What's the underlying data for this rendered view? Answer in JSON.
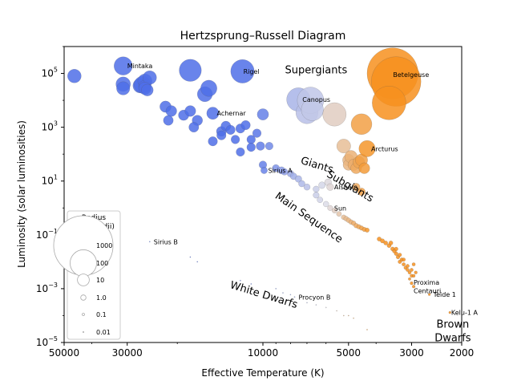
{
  "chart_data": {
    "type": "scatter",
    "title": "Hertzsprung–Russell Diagram",
    "xlabel": "Effective Temperature (K)",
    "ylabel": "Luminosity (solar luminosities)",
    "x_scale": "log",
    "y_scale": "log",
    "x_reversed": true,
    "xlim": [
      50000,
      2000
    ],
    "ylim": [
      1e-05,
      1000000
    ],
    "x_ticks": [
      {
        "value": 50000,
        "label": "50000"
      },
      {
        "value": 30000,
        "label": "30000"
      },
      {
        "value": 10000,
        "label": "10000"
      },
      {
        "value": 5000,
        "label": "5000"
      },
      {
        "value": 3000,
        "label": "3000"
      },
      {
        "value": 2000,
        "label": "2000"
      }
    ],
    "y_ticks": [
      {
        "value": 1e-05,
        "base": "10",
        "exp": "−5"
      },
      {
        "value": 0.001,
        "base": "10",
        "exp": "−3"
      },
      {
        "value": 0.1,
        "base": "10",
        "exp": "−1"
      },
      {
        "value": 10,
        "base": "10",
        "exp": "1"
      },
      {
        "value": 1000,
        "base": "10",
        "exp": "3"
      },
      {
        "value": 100000,
        "base": "10",
        "exp": "5"
      }
    ],
    "grid": false,
    "color_hot": "#4f6fe8",
    "color_mid": "#dcdce8",
    "color_cool": "#f7911e",
    "legend": {
      "title_line1": "Radius",
      "title_line2": "(solar radii)",
      "placement": "lower-left",
      "entries": [
        {
          "label": "1000",
          "radius": 1000
        },
        {
          "label": "100",
          "radius": 100
        },
        {
          "label": "10",
          "radius": 10
        },
        {
          "label": "1.0",
          "radius": 1
        },
        {
          "label": "0.1",
          "radius": 0.1
        },
        {
          "label": "0.01",
          "radius": 0.01
        }
      ]
    },
    "region_labels": [
      {
        "text": "Supergiants",
        "t": 6500,
        "l": 100000,
        "rotate": 0
      },
      {
        "text": "Giants",
        "t": 6500,
        "l": 30,
        "rotate": 17
      },
      {
        "text": "Subgiants",
        "t": 5000,
        "l": 5,
        "rotate": 30
      },
      {
        "text": "Main Sequence",
        "t": 7000,
        "l": 0.35,
        "rotate": 35
      },
      {
        "text": "White Dwarfs",
        "t": 10000,
        "l": 0.00045,
        "rotate": 17
      },
      {
        "text": "Brown",
        "t": 2150,
        "l": 3.5e-05,
        "rotate": 0
      },
      {
        "text": "Dwarfs",
        "t": 2150,
        "l": 1.1e-05,
        "rotate": 0
      }
    ],
    "star_labels": [
      {
        "text": "Mintaka",
        "t": 31000,
        "l": 190000
      },
      {
        "text": "Rigel",
        "t": 12100,
        "l": 120000
      },
      {
        "text": "Betelgeuse",
        "t": 3600,
        "l": 90000
      },
      {
        "text": "Canopus",
        "t": 7500,
        "l": 10700
      },
      {
        "text": "Achernar",
        "t": 15000,
        "l": 3300
      },
      {
        "text": "Arcturus",
        "t": 4300,
        "l": 160
      },
      {
        "text": "Sirius A",
        "t": 9900,
        "l": 25
      },
      {
        "text": "Alshain",
        "t": 5800,
        "l": 6
      },
      {
        "text": "Sun",
        "t": 5800,
        "l": 1
      },
      {
        "text": "Sirius B",
        "t": 25000,
        "l": 0.056
      },
      {
        "text": "Proxima",
        "t": 3050,
        "l": 0.0017
      },
      {
        "text": "Centauri",
        "t": 3050,
        "l": 0.00085
      },
      {
        "text": "Procyon B",
        "t": 7740,
        "l": 0.00049
      },
      {
        "text": "Teide 1",
        "t": 2600,
        "l": 0.00061
      },
      {
        "text": "Kelu-1 A",
        "t": 2250,
        "l": 0.00013
      }
    ],
    "stars": [
      {
        "t": 46000,
        "l": 80000,
        "r": 15
      },
      {
        "t": 31000,
        "l": 190000,
        "r": 35
      },
      {
        "t": 31000,
        "l": 40000,
        "r": 18
      },
      {
        "t": 31000,
        "l": 28000,
        "r": 14
      },
      {
        "t": 27000,
        "l": 35000,
        "r": 18
      },
      {
        "t": 26500,
        "l": 38000,
        "r": 28
      },
      {
        "t": 26000,
        "l": 52000,
        "r": 17
      },
      {
        "t": 26000,
        "l": 33000,
        "r": 12
      },
      {
        "t": 25000,
        "l": 70000,
        "r": 15
      },
      {
        "t": 26000,
        "l": 28000,
        "r": 12
      },
      {
        "t": 25500,
        "l": 24000,
        "r": 10
      },
      {
        "t": 22000,
        "l": 5800,
        "r": 9
      },
      {
        "t": 21000,
        "l": 4000,
        "r": 8
      },
      {
        "t": 19000,
        "l": 2800,
        "r": 7
      },
      {
        "t": 18000,
        "l": 130000,
        "r": 60
      },
      {
        "t": 18000,
        "l": 4000,
        "r": 8
      },
      {
        "t": 17000,
        "l": 1800,
        "r": 7
      },
      {
        "t": 16000,
        "l": 17000,
        "r": 20
      },
      {
        "t": 15500,
        "l": 28000,
        "r": 25
      },
      {
        "t": 17500,
        "l": 1000,
        "r": 6
      },
      {
        "t": 21500,
        "l": 1800,
        "r": 6
      },
      {
        "t": 15000,
        "l": 3300,
        "r": 11
      },
      {
        "t": 15000,
        "l": 300,
        "r": 5
      },
      {
        "t": 14000,
        "l": 700,
        "r": 6
      },
      {
        "t": 14000,
        "l": 500,
        "r": 5
      },
      {
        "t": 13500,
        "l": 1100,
        "r": 6
      },
      {
        "t": 13000,
        "l": 800,
        "r": 5
      },
      {
        "t": 12500,
        "l": 350,
        "r": 4
      },
      {
        "t": 12000,
        "l": 900,
        "r": 5
      },
      {
        "t": 11500,
        "l": 1200,
        "r": 5
      },
      {
        "t": 11800,
        "l": 120000,
        "r": 71
      },
      {
        "t": 12000,
        "l": 120,
        "r": 4
      },
      {
        "t": 11000,
        "l": 350,
        "r": 4
      },
      {
        "t": 11000,
        "l": 180,
        "r": 4
      },
      {
        "t": 10500,
        "l": 600,
        "r": 4
      },
      {
        "t": 10200,
        "l": 200,
        "r": 4
      },
      {
        "t": 10000,
        "l": 3000,
        "r": 9
      },
      {
        "t": 10000,
        "l": 40,
        "r": 3
      },
      {
        "t": 9900,
        "l": 25,
        "r": 2
      },
      {
        "t": 9500,
        "l": 200,
        "r": 3
      },
      {
        "t": 9000,
        "l": 30,
        "r": 2.5
      },
      {
        "t": 8600,
        "l": 25,
        "r": 2.5
      },
      {
        "t": 8400,
        "l": 22,
        "r": 2
      },
      {
        "t": 8000,
        "l": 19,
        "r": 2
      },
      {
        "t": 7800,
        "l": 15,
        "r": 2
      },
      {
        "t": 7500,
        "l": 10700,
        "r": 71
      },
      {
        "t": 7500,
        "l": 12,
        "r": 2
      },
      {
        "t": 7300,
        "l": 8,
        "r": 1.8
      },
      {
        "t": 7000,
        "l": 6,
        "r": 1.7
      },
      {
        "t": 7000,
        "l": 3500,
        "r": 60
      },
      {
        "t": 6800,
        "l": 10000,
        "r": 100
      },
      {
        "t": 6700,
        "l": 4500,
        "r": 60
      },
      {
        "t": 6500,
        "l": 3,
        "r": 1.5
      },
      {
        "t": 6500,
        "l": 5,
        "r": 1.6
      },
      {
        "t": 6300,
        "l": 2,
        "r": 1.3
      },
      {
        "t": 6200,
        "l": 7,
        "r": 2
      },
      {
        "t": 6000,
        "l": 1.4,
        "r": 1.2
      },
      {
        "t": 5900,
        "l": 9,
        "r": 2.2
      },
      {
        "t": 5800,
        "l": 1,
        "r": 1
      },
      {
        "t": 5800,
        "l": 6,
        "r": 2.2
      },
      {
        "t": 5600,
        "l": 3000,
        "r": 70
      },
      {
        "t": 5600,
        "l": 0.8,
        "r": 0.9
      },
      {
        "t": 5400,
        "l": 0.6,
        "r": 0.85
      },
      {
        "t": 5200,
        "l": 0.45,
        "r": 0.8
      },
      {
        "t": 5100,
        "l": 0.4,
        "r": 0.78
      },
      {
        "t": 5000,
        "l": 0.35,
        "r": 0.75
      },
      {
        "t": 4900,
        "l": 0.3,
        "r": 0.72
      },
      {
        "t": 4800,
        "l": 0.27,
        "r": 0.7
      },
      {
        "t": 4700,
        "l": 0.22,
        "r": 0.68
      },
      {
        "t": 4600,
        "l": 0.2,
        "r": 0.65
      },
      {
        "t": 4500,
        "l": 0.18,
        "r": 0.62
      },
      {
        "t": 4400,
        "l": 0.16,
        "r": 0.6
      },
      {
        "t": 4300,
        "l": 0.15,
        "r": 0.58
      },
      {
        "t": 5200,
        "l": 200,
        "r": 16
      },
      {
        "t": 5000,
        "l": 60,
        "r": 10
      },
      {
        "t": 5000,
        "l": 40,
        "r": 8
      },
      {
        "t": 4900,
        "l": 80,
        "r": 12
      },
      {
        "t": 4800,
        "l": 40,
        "r": 9
      },
      {
        "t": 4700,
        "l": 30,
        "r": 8
      },
      {
        "t": 4600,
        "l": 50,
        "r": 10
      },
      {
        "t": 4500,
        "l": 60,
        "r": 11
      },
      {
        "t": 4400,
        "l": 30,
        "r": 8
      },
      {
        "t": 4500,
        "l": 1300,
        "r": 50
      },
      {
        "t": 4300,
        "l": 160,
        "r": 25
      },
      {
        "t": 4700,
        "l": 6,
        "r": 3
      },
      {
        "t": 4500,
        "l": 4,
        "r": 2.8
      },
      {
        "t": 3900,
        "l": 0.07,
        "r": 0.55
      },
      {
        "t": 3800,
        "l": 0.06,
        "r": 0.55
      },
      {
        "t": 3700,
        "l": 0.05,
        "r": 0.5
      },
      {
        "t": 3600,
        "l": 0.04,
        "r": 0.5
      },
      {
        "t": 3550,
        "l": 0.05,
        "r": 0.5
      },
      {
        "t": 3500,
        "l": 0.03,
        "r": 0.45
      },
      {
        "t": 3450,
        "l": 0.025,
        "r": 0.45
      },
      {
        "t": 3400,
        "l": 0.02,
        "r": 0.4
      },
      {
        "t": 3350,
        "l": 0.015,
        "r": 0.38
      },
      {
        "t": 3300,
        "l": 0.01,
        "r": 0.35
      },
      {
        "t": 3250,
        "l": 0.012,
        "r": 0.35
      },
      {
        "t": 3200,
        "l": 0.008,
        "r": 0.32
      },
      {
        "t": 3150,
        "l": 0.006,
        "r": 0.3
      },
      {
        "t": 3100,
        "l": 0.005,
        "r": 0.3
      },
      {
        "t": 3050,
        "l": 0.004,
        "r": 0.28
      },
      {
        "t": 3000,
        "l": 0.003,
        "r": 0.25
      },
      {
        "t": 3000,
        "l": 0.0016,
        "r": 0.22
      },
      {
        "t": 3050,
        "l": 0.0023,
        "r": 0.15
      },
      {
        "t": 2950,
        "l": 0.0012,
        "r": 0.2
      },
      {
        "t": 3100,
        "l": 0.007,
        "r": 0.3
      },
      {
        "t": 3200,
        "l": 0.012,
        "r": 0.32
      },
      {
        "t": 3300,
        "l": 0.018,
        "r": 0.35
      },
      {
        "t": 3400,
        "l": 0.03,
        "r": 0.4
      },
      {
        "t": 3000,
        "l": 0.005,
        "r": 0.28
      },
      {
        "t": 2950,
        "l": 0.008,
        "r": 0.26
      },
      {
        "t": 2900,
        "l": 0.004,
        "r": 0.22
      },
      {
        "t": 2950,
        "l": 0.003,
        "r": 0.22
      },
      {
        "t": 3500,
        "l": 100000,
        "r": 650
      },
      {
        "t": 3400,
        "l": 50000,
        "r": 600
      },
      {
        "t": 3600,
        "l": 8000,
        "r": 200
      },
      {
        "t": 2600,
        "l": 0.00061,
        "r": 0.1
      },
      {
        "t": 2200,
        "l": 0.00013,
        "r": 0.09
      },
      {
        "t": 25000,
        "l": 0.056,
        "r": 0.008
      },
      {
        "t": 18000,
        "l": 0.015,
        "r": 0.008
      },
      {
        "t": 17000,
        "l": 0.01,
        "r": 0.008
      },
      {
        "t": 12000,
        "l": 0.002,
        "r": 0.008
      },
      {
        "t": 11000,
        "l": 0.0015,
        "r": 0.008
      },
      {
        "t": 9000,
        "l": 0.001,
        "r": 0.008
      },
      {
        "t": 8500,
        "l": 0.0007,
        "r": 0.008
      },
      {
        "t": 7740,
        "l": 0.00049,
        "r": 0.012
      },
      {
        "t": 7000,
        "l": 0.0003,
        "r": 0.008
      },
      {
        "t": 6500,
        "l": 0.00025,
        "r": 0.008
      },
      {
        "t": 6000,
        "l": 0.0002,
        "r": 0.008
      },
      {
        "t": 5500,
        "l": 0.00015,
        "r": 0.008
      },
      {
        "t": 5200,
        "l": 0.0001,
        "r": 0.008
      },
      {
        "t": 5000,
        "l": 0.0001,
        "r": 0.008
      },
      {
        "t": 4800,
        "l": 8e-05,
        "r": 0.008
      },
      {
        "t": 4300,
        "l": 3e-05,
        "r": 0.008
      },
      {
        "t": 8000,
        "l": 0.0006,
        "r": 0.008
      }
    ]
  }
}
